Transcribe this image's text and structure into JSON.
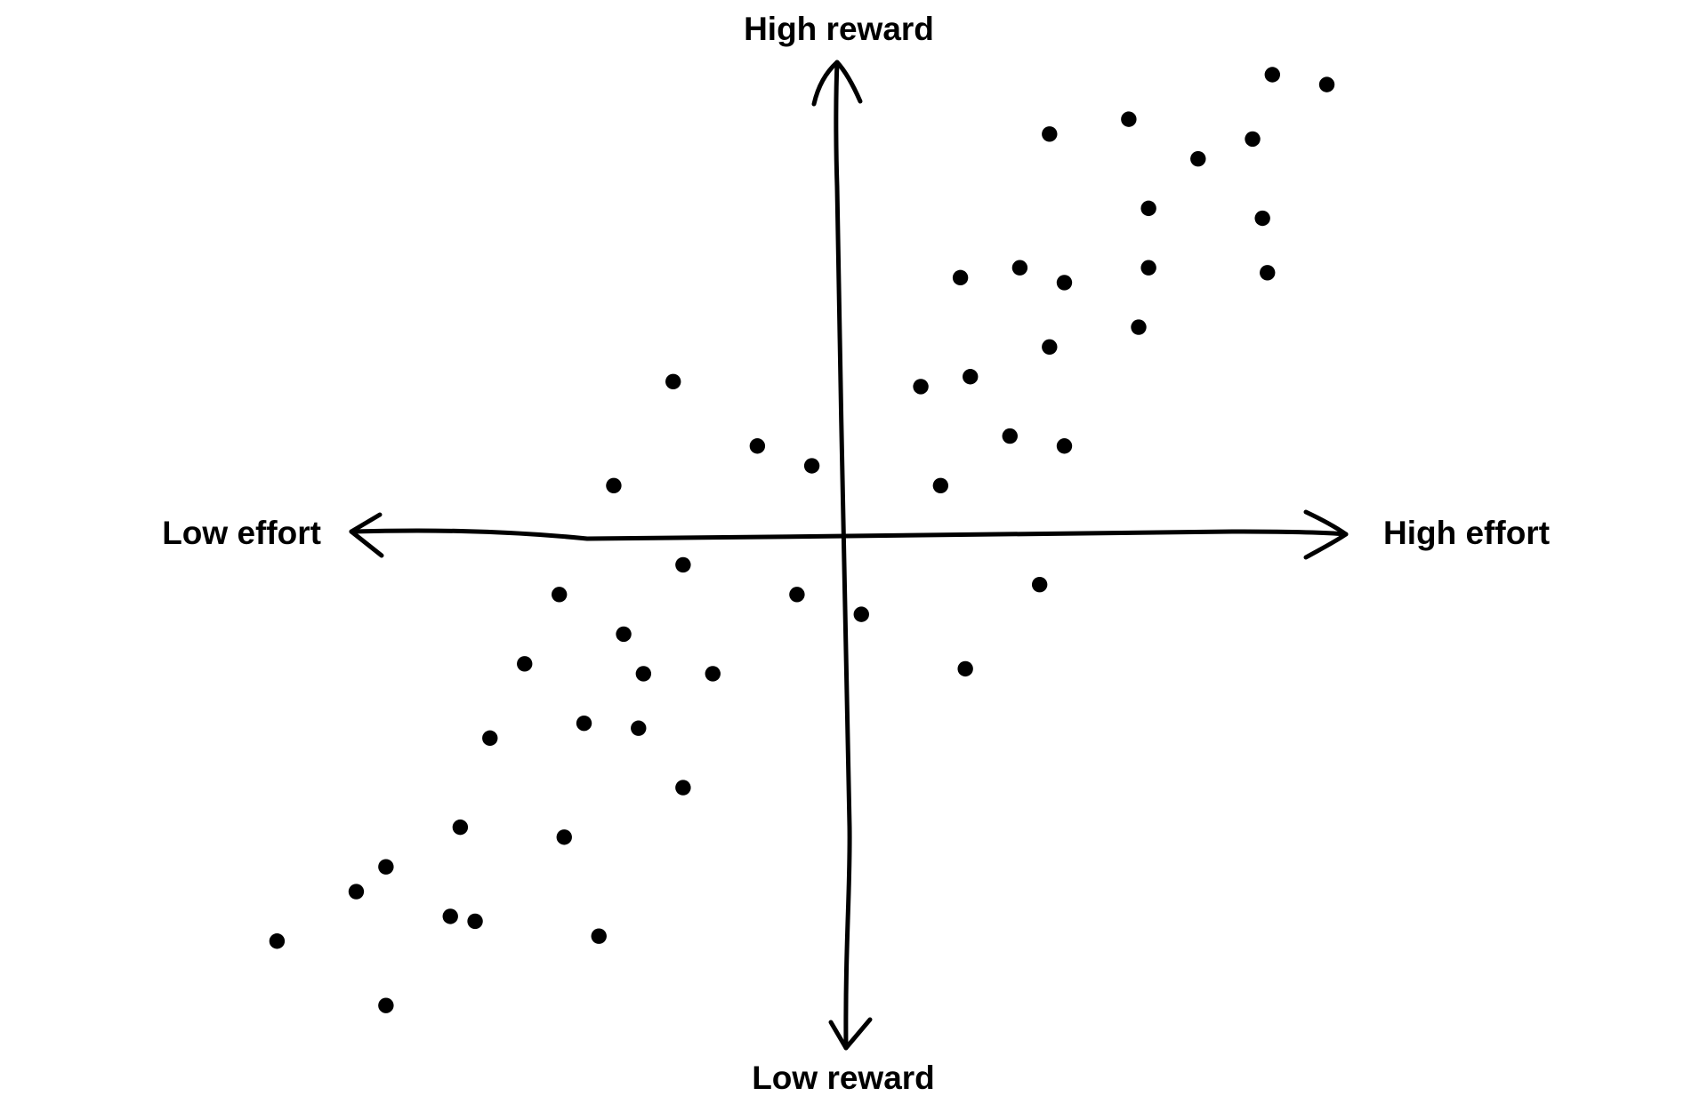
{
  "chart_data": {
    "type": "scatter",
    "axis_labels": {
      "y_high": "High reward",
      "y_low": "Low reward",
      "x_low": "Low effort",
      "x_high": "High effort"
    },
    "color": "#000000",
    "xlim": [
      -12,
      12
    ],
    "ylim": [
      -10,
      10
    ],
    "x": [
      8.7,
      9.8,
      4.2,
      5.8,
      8.3,
      7.2,
      6.2,
      8.5,
      2.4,
      3.6,
      4.5,
      6.2,
      8.6,
      6.0,
      4.2,
      -3.4,
      1.6,
      2.6,
      -1.7,
      -0.6,
      3.4,
      4.5,
      -4.6,
      2.0,
      -3.2,
      -5.7,
      -0.9,
      0.4,
      4.0,
      -4.4,
      -6.4,
      -4.0,
      -2.6,
      2.5,
      -5.2,
      -4.1,
      -7.1,
      -3.2,
      -7.7,
      -5.6,
      -9.2,
      -9.8,
      -7.9,
      -7.4,
      -4.9,
      -11.4,
      -9.2
    ],
    "values": [
      9.3,
      9.1,
      8.1,
      8.4,
      8.0,
      7.6,
      6.6,
      6.4,
      5.2,
      5.4,
      5.1,
      5.4,
      5.3,
      4.2,
      3.8,
      3.1,
      3.0,
      3.2,
      1.8,
      1.4,
      2.0,
      1.8,
      1.0,
      1.0,
      -0.6,
      -1.2,
      -1.2,
      -1.6,
      -1.0,
      -2.0,
      -2.6,
      -2.8,
      -2.8,
      -2.7,
      -3.8,
      -3.9,
      -4.1,
      -5.1,
      -5.9,
      -6.1,
      -6.7,
      -7.2,
      -7.7,
      -7.8,
      -8.1,
      -8.2,
      -9.5
    ]
  }
}
